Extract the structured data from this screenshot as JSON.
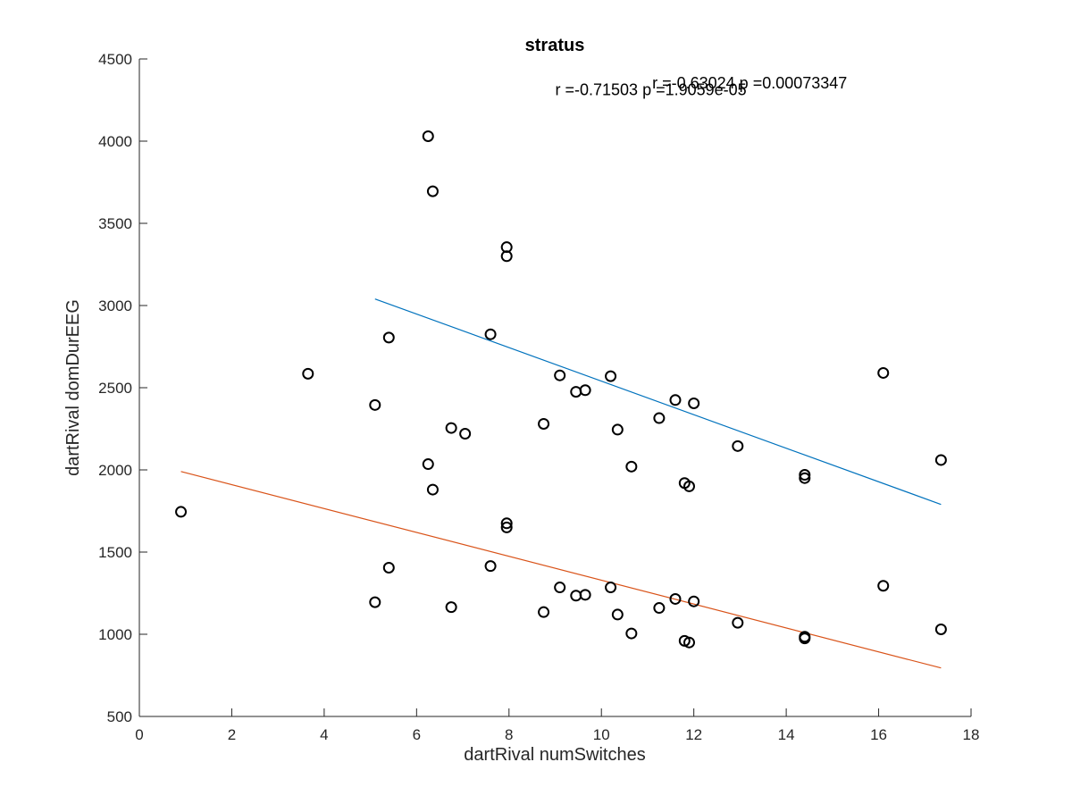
{
  "chart_data": {
    "type": "scatter",
    "title": "stratus",
    "xlabel": "dartRival numSwitches",
    "ylabel": "dartRival domDurEEG",
    "xlim": [
      0,
      18
    ],
    "ylim": [
      500,
      4500
    ],
    "xticks": [
      "0",
      "2",
      "4",
      "6",
      "8",
      "10",
      "12",
      "14",
      "16",
      "18"
    ],
    "yticks": [
      "500",
      "1000",
      "1500",
      "2000",
      "2500",
      "3000",
      "3500",
      "4000",
      "4500"
    ],
    "annotations": [
      {
        "text": "r =-0.63024   p =0.00073347",
        "x": 11.1,
        "y": 4320
      },
      {
        "text": "r =-0.71503   p =1.9059e-05",
        "x": 9.0,
        "y": 4280
      }
    ],
    "series": [
      {
        "marker": "circle",
        "color": "#000000",
        "points": [
          [
            6.25,
            4030
          ],
          [
            6.35,
            3695
          ],
          [
            7.95,
            3355
          ],
          [
            7.95,
            3300
          ],
          [
            5.4,
            2805
          ],
          [
            7.6,
            2825
          ],
          [
            3.65,
            2585
          ],
          [
            5.1,
            2395
          ],
          [
            6.75,
            2255
          ],
          [
            7.05,
            2220
          ],
          [
            6.25,
            2035
          ],
          [
            6.35,
            1880
          ],
          [
            8.75,
            2280
          ],
          [
            9.1,
            2575
          ],
          [
            9.45,
            2475
          ],
          [
            9.65,
            2485
          ],
          [
            10.2,
            2570
          ],
          [
            10.35,
            2245
          ],
          [
            10.65,
            2020
          ],
          [
            11.25,
            2315
          ],
          [
            11.6,
            2425
          ],
          [
            12.0,
            2405
          ],
          [
            11.8,
            1920
          ],
          [
            11.9,
            1900
          ],
          [
            12.95,
            2145
          ],
          [
            14.4,
            1970
          ],
          [
            14.4,
            1950
          ],
          [
            16.1,
            2590
          ],
          [
            17.35,
            2060
          ],
          [
            0.9,
            1745
          ],
          [
            7.95,
            1675
          ],
          [
            7.95,
            1650
          ],
          [
            5.4,
            1405
          ],
          [
            7.6,
            1415
          ],
          [
            5.1,
            1195
          ],
          [
            6.75,
            1165
          ],
          [
            8.75,
            1135
          ],
          [
            9.1,
            1285
          ],
          [
            9.45,
            1235
          ],
          [
            9.65,
            1240
          ],
          [
            10.2,
            1285
          ],
          [
            10.35,
            1120
          ],
          [
            10.65,
            1005
          ],
          [
            11.25,
            1160
          ],
          [
            11.6,
            1215
          ],
          [
            12.0,
            1200
          ],
          [
            11.8,
            960
          ],
          [
            11.9,
            950
          ],
          [
            12.95,
            1070
          ],
          [
            14.4,
            985
          ],
          [
            14.4,
            975
          ],
          [
            16.1,
            1295
          ],
          [
            17.35,
            1030
          ]
        ]
      }
    ],
    "fit_lines": [
      {
        "color": "#0072BD",
        "x": [
          5.1,
          17.35
        ],
        "y": [
          3040,
          1790
        ]
      },
      {
        "color": "#D95319",
        "x": [
          0.9,
          17.35
        ],
        "y": [
          1990,
          795
        ]
      }
    ]
  }
}
